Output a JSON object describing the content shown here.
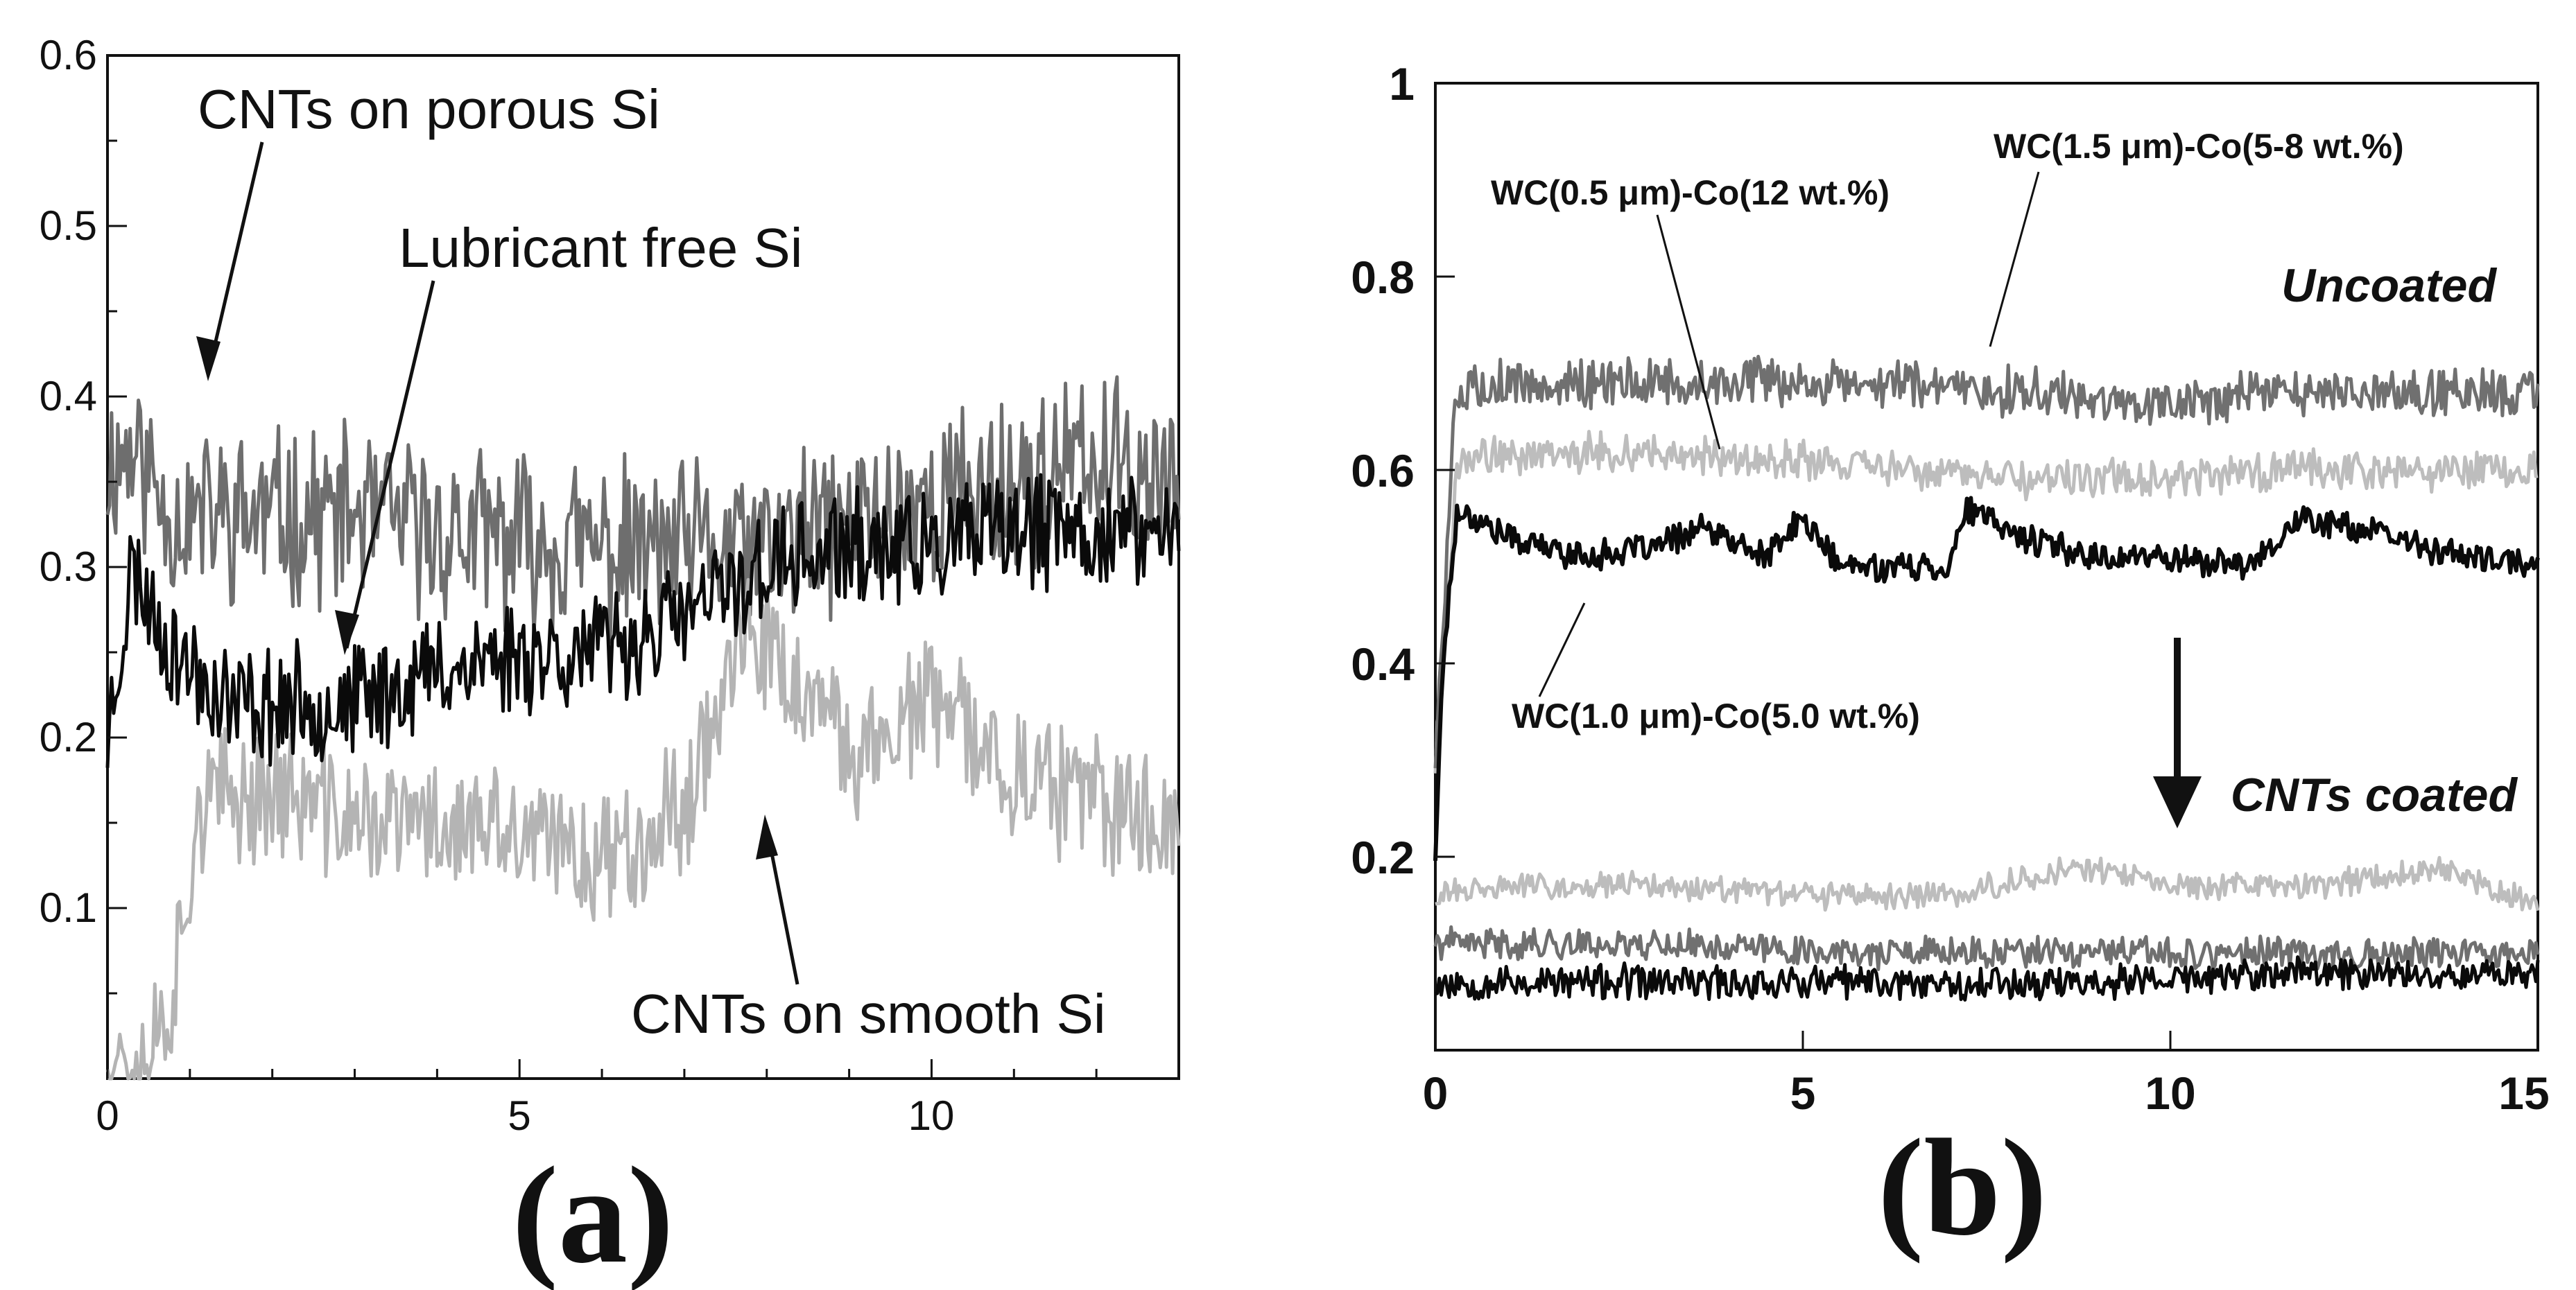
{
  "chart_data": [
    {
      "type": "line",
      "panel_label": "(a)",
      "title": "",
      "xlabel": "",
      "ylabel": "",
      "xlim": [
        0,
        13
      ],
      "ylim": [
        0,
        0.6
      ],
      "x_ticks": [
        0,
        5,
        10
      ],
      "x_tick_labels": [
        "0",
        "5",
        "10"
      ],
      "y_ticks": [
        0.1,
        0.2,
        0.3,
        0.4,
        0.5,
        0.6
      ],
      "y_tick_labels": [
        "0.1",
        "0.2",
        "0.3",
        "0.4",
        "0.5",
        "0.6"
      ],
      "series": [
        {
          "name": "CNTs on porous Si",
          "color": "#6e6e6e",
          "noise": 0.045,
          "seed": 11,
          "points": [
            [
              0,
              0.36
            ],
            [
              0.3,
              0.37
            ],
            [
              0.8,
              0.33
            ],
            [
              1.5,
              0.33
            ],
            [
              3,
              0.33
            ],
            [
              4,
              0.32
            ],
            [
              6,
              0.31
            ],
            [
              8,
              0.31
            ],
            [
              10,
              0.34
            ],
            [
              12,
              0.36
            ],
            [
              13,
              0.35
            ]
          ]
        },
        {
          "name": "Lubricant free Si",
          "color": "#0a0a0a",
          "noise": 0.03,
          "seed": 23,
          "points": [
            [
              0,
              0.2
            ],
            [
              0.3,
              0.3
            ],
            [
              0.8,
              0.25
            ],
            [
              1.5,
              0.22
            ],
            [
              2.5,
              0.22
            ],
            [
              3,
              0.22
            ],
            [
              4,
              0.24
            ],
            [
              5,
              0.25
            ],
            [
              6,
              0.25
            ],
            [
              7,
              0.27
            ],
            [
              8,
              0.3
            ],
            [
              9,
              0.31
            ],
            [
              10,
              0.31
            ],
            [
              11,
              0.32
            ],
            [
              12,
              0.32
            ],
            [
              13,
              0.32
            ]
          ]
        },
        {
          "name": "CNTs on smooth Si",
          "color": "#b4b4b4",
          "noise": 0.035,
          "seed": 37,
          "points": [
            [
              0,
              0.02
            ],
            [
              0.4,
              0.01
            ],
            [
              0.8,
              0.05
            ],
            [
              1.1,
              0.16
            ],
            [
              2,
              0.17
            ],
            [
              3,
              0.15
            ],
            [
              4,
              0.15
            ],
            [
              5,
              0.14
            ],
            [
              6,
              0.13
            ],
            [
              7,
              0.16
            ],
            [
              7.6,
              0.25
            ],
            [
              8,
              0.25
            ],
            [
              9,
              0.19
            ],
            [
              10,
              0.22
            ],
            [
              11,
              0.18
            ],
            [
              12,
              0.16
            ],
            [
              13,
              0.15
            ]
          ]
        }
      ],
      "annotations": [
        {
          "text": "CNTs on porous Si",
          "arrow_to": [
            1.2,
            0.4
          ]
        },
        {
          "text": "Lubricant free Si",
          "arrow_to": [
            2.9,
            0.25
          ]
        },
        {
          "text": "CNTs on smooth Si",
          "arrow_to": [
            8.0,
            0.15
          ]
        }
      ]
    },
    {
      "type": "line",
      "panel_label": "(b)",
      "title": "",
      "xlabel": "",
      "ylabel": "",
      "xlim": [
        0,
        15
      ],
      "ylim": [
        0,
        1
      ],
      "x_ticks": [
        0,
        5,
        10,
        15
      ],
      "x_tick_labels": [
        "0",
        "5",
        "10",
        "15"
      ],
      "y_ticks": [
        0.2,
        0.4,
        0.6,
        0.8,
        1
      ],
      "y_tick_labels": [
        "0.2",
        "0.4",
        "0.6",
        "0.8",
        "1"
      ],
      "series": [
        {
          "name": "WC(1.5 μm)-Co(5-8 wt.%) uncoated",
          "color": "#707070",
          "noise": 0.022,
          "seed": 5,
          "points": [
            [
              0,
              0.3
            ],
            [
              0.25,
              0.65
            ],
            [
              0.5,
              0.69
            ],
            [
              2,
              0.69
            ],
            [
              5,
              0.69
            ],
            [
              8,
              0.68
            ],
            [
              10,
              0.67
            ],
            [
              12,
              0.68
            ],
            [
              15,
              0.68
            ]
          ]
        },
        {
          "name": "WC(0.5 μm)-Co(12 wt.%) uncoated",
          "color": "#bdbdbd",
          "noise": 0.018,
          "seed": 9,
          "points": [
            [
              0,
              0.3
            ],
            [
              0.3,
              0.61
            ],
            [
              2,
              0.62
            ],
            [
              5,
              0.61
            ],
            [
              8,
              0.59
            ],
            [
              10,
              0.59
            ],
            [
              12,
              0.6
            ],
            [
              15,
              0.6
            ]
          ]
        },
        {
          "name": "WC(1.0 μm)-Co(5.0 wt.%) uncoated",
          "color": "#0a0a0a",
          "noise": 0.013,
          "seed": 17,
          "points": [
            [
              0,
              0.2
            ],
            [
              0.1,
              0.4
            ],
            [
              0.3,
              0.56
            ],
            [
              1,
              0.53
            ],
            [
              2,
              0.51
            ],
            [
              3,
              0.52
            ],
            [
              3.6,
              0.54
            ],
            [
              4.5,
              0.51
            ],
            [
              5,
              0.55
            ],
            [
              5.5,
              0.5
            ],
            [
              7,
              0.5
            ],
            [
              7.2,
              0.56
            ],
            [
              8,
              0.53
            ],
            [
              9,
              0.51
            ],
            [
              10,
              0.51
            ],
            [
              11,
              0.5
            ],
            [
              11.8,
              0.55
            ],
            [
              12.5,
              0.54
            ],
            [
              14,
              0.51
            ],
            [
              15,
              0.5
            ]
          ]
        },
        {
          "name": "WC(0.5 μm)-Co(12 wt.%) CNTs coated",
          "color": "#bdbdbd",
          "noise": 0.012,
          "seed": 31,
          "points": [
            [
              0,
              0.16
            ],
            [
              1,
              0.17
            ],
            [
              3,
              0.17
            ],
            [
              5,
              0.16
            ],
            [
              7,
              0.16
            ],
            [
              8.8,
              0.19
            ],
            [
              10,
              0.17
            ],
            [
              12,
              0.17
            ],
            [
              13.7,
              0.19
            ],
            [
              15,
              0.15
            ]
          ]
        },
        {
          "name": "WC(1.5 μm)-Co(5-8 wt.%) CNTs coated",
          "color": "#707070",
          "noise": 0.014,
          "seed": 41,
          "points": [
            [
              0,
              0.11
            ],
            [
              3,
              0.11
            ],
            [
              6,
              0.1
            ],
            [
              9,
              0.1
            ],
            [
              12,
              0.1
            ],
            [
              15,
              0.1
            ]
          ]
        },
        {
          "name": "WC(1.0 μm)-Co(5.0 wt.%) CNTs coated",
          "color": "#0a0a0a",
          "noise": 0.016,
          "seed": 53,
          "points": [
            [
              0,
              0.07
            ],
            [
              3,
              0.07
            ],
            [
              6,
              0.07
            ],
            [
              9,
              0.07
            ],
            [
              12,
              0.08
            ],
            [
              15,
              0.08
            ]
          ]
        }
      ],
      "annotations": [
        {
          "text": "WC(0.5 μm)-Co(12 wt.%)",
          "arrow_to": [
            3.5,
            0.61
          ]
        },
        {
          "text": "WC(1.5 μm)-Co(5-8 wt.%)",
          "arrow_to": [
            7.5,
            0.72
          ]
        },
        {
          "text": "WC(1.0 μm)-Co(5.0 wt.%)",
          "arrow_to": [
            2.1,
            0.5
          ]
        },
        {
          "text": "Uncoated",
          "arrow_to": null
        },
        {
          "text": "CNTs coated",
          "arrow_to": null
        }
      ]
    }
  ]
}
